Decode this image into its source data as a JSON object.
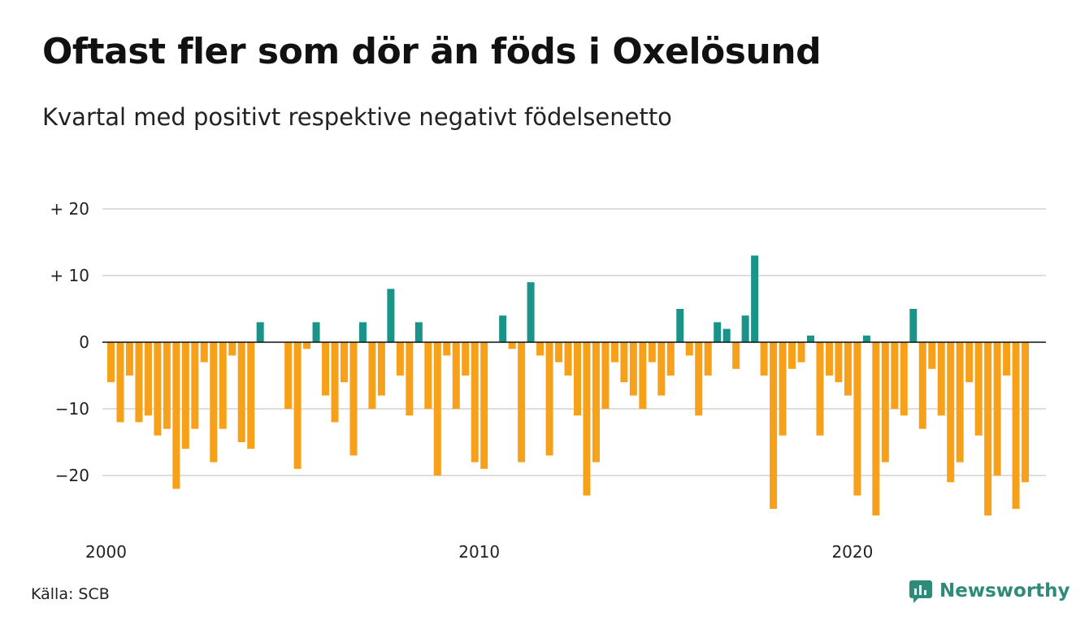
{
  "title": "Oftast fler som dör än föds i Oxelösund",
  "subtitle": "Kvartal med positivt respektive negativt födelsenetto",
  "source": "Källa: SCB",
  "brand": {
    "name": "Newsworthy",
    "logo_icon": "newsworthy-chart-bubble-icon"
  },
  "colors": {
    "positive": "#1a9488",
    "negative": "#f7a11a",
    "grid": "#dddddd",
    "zero_line": "#111111",
    "brand": "#2e8b7a"
  },
  "chart_data": {
    "type": "bar",
    "start_year": 2000,
    "x_tick_labels": [
      "2000",
      "2010",
      "2020"
    ],
    "y_ticks": [
      {
        "value": 20,
        "label": "+ 20"
      },
      {
        "value": 10,
        "label": "+ 10"
      },
      {
        "value": 0,
        "label": "0"
      },
      {
        "value": -10,
        "label": "−10"
      },
      {
        "value": -20,
        "label": "−20"
      }
    ],
    "ylim": [
      -28,
      21
    ],
    "grid": true,
    "values": [
      -6,
      -12,
      -5,
      -12,
      -11,
      -14,
      -13,
      -22,
      -16,
      -13,
      -3,
      -18,
      -13,
      -2,
      -15,
      -16,
      3,
      0,
      0,
      -10,
      -19,
      -1,
      3,
      -8,
      -12,
      -6,
      -17,
      3,
      -10,
      -8,
      8,
      -5,
      -11,
      3,
      -10,
      -20,
      -2,
      -10,
      -5,
      -18,
      -19,
      0,
      4,
      -1,
      -18,
      9,
      -2,
      -17,
      -3,
      -5,
      -11,
      -23,
      -18,
      -10,
      -3,
      -6,
      -8,
      -10,
      -3,
      -8,
      -5,
      5,
      -2,
      -11,
      -5,
      3,
      2,
      -4,
      4,
      13,
      -5,
      -25,
      -14,
      -4,
      -3,
      1,
      -14,
      -5,
      -6,
      -8,
      -23,
      1,
      -26,
      -18,
      -10,
      -11,
      5,
      -13,
      -4,
      -11,
      -21,
      -18,
      -6,
      -14,
      -26,
      -20,
      -5,
      -25,
      -21
    ]
  }
}
